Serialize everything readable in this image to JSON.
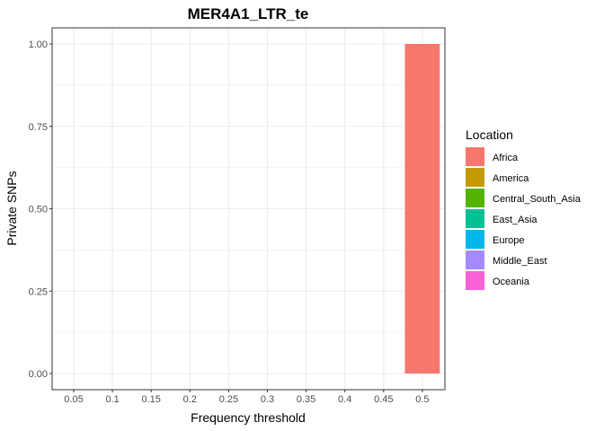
{
  "chart_data": {
    "type": "bar",
    "title": "MER4A1_LTR_te",
    "xlabel": "Frequency threshold",
    "ylabel": "Private SNPs",
    "categories": [
      "0.05",
      "0.1",
      "0.15",
      "0.2",
      "0.25",
      "0.3",
      "0.35",
      "0.4",
      "0.45",
      "0.5"
    ],
    "yticks": [
      "0.00",
      "0.25",
      "0.50",
      "0.75",
      "1.00"
    ],
    "ylim": [
      0,
      1
    ],
    "grid": true,
    "legend": {
      "title": "Location",
      "position": "right",
      "entries": [
        {
          "name": "Africa",
          "color": "#F8766D"
        },
        {
          "name": "America",
          "color": "#C49A00"
        },
        {
          "name": "Central_South_Asia",
          "color": "#53B400"
        },
        {
          "name": "East_Asia",
          "color": "#00C094"
        },
        {
          "name": "Europe",
          "color": "#00B6EB"
        },
        {
          "name": "Middle_East",
          "color": "#A58AFF"
        },
        {
          "name": "Oceania",
          "color": "#FB61D7"
        }
      ]
    },
    "series": [
      {
        "name": "Africa",
        "color": "#F8766D",
        "values": [
          0,
          0,
          0,
          0,
          0,
          0,
          0,
          0,
          0,
          1
        ]
      },
      {
        "name": "America",
        "color": "#C49A00",
        "values": [
          0,
          0,
          0,
          0,
          0,
          0,
          0,
          0,
          0,
          0
        ]
      },
      {
        "name": "Central_South_Asia",
        "color": "#53B400",
        "values": [
          0,
          0,
          0,
          0,
          0,
          0,
          0,
          0,
          0,
          0
        ]
      },
      {
        "name": "East_Asia",
        "color": "#00C094",
        "values": [
          0,
          0,
          0,
          0,
          0,
          0,
          0,
          0,
          0,
          0
        ]
      },
      {
        "name": "Europe",
        "color": "#00B6EB",
        "values": [
          0,
          0,
          0,
          0,
          0,
          0,
          0,
          0,
          0,
          0
        ]
      },
      {
        "name": "Middle_East",
        "color": "#A58AFF",
        "values": [
          0,
          0,
          0,
          0,
          0,
          0,
          0,
          0,
          0,
          0
        ]
      },
      {
        "name": "Oceania",
        "color": "#FB61D7",
        "values": [
          0,
          0,
          0,
          0,
          0,
          0,
          0,
          0,
          0,
          0
        ]
      }
    ]
  }
}
